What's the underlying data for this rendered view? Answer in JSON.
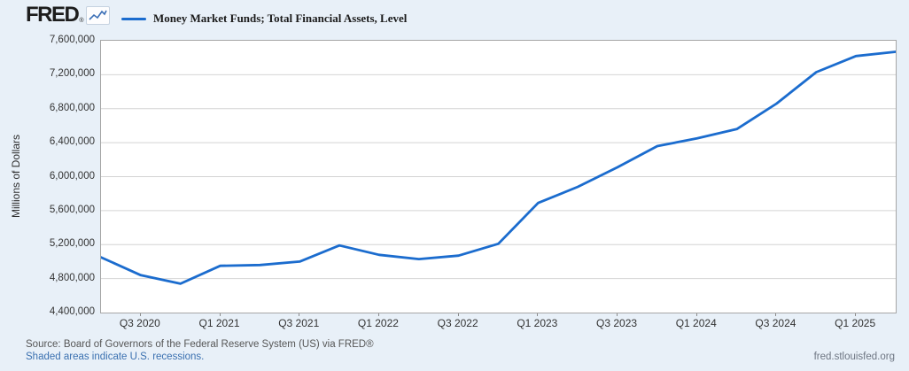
{
  "header": {
    "logo_text": "FRED",
    "registered_mark": "®",
    "legend_label": "Money Market Funds; Total Financial Assets, Level"
  },
  "chart_data": {
    "type": "line",
    "title": "Money Market Funds; Total Financial Assets, Level",
    "ylabel": "Millions of Dollars",
    "ylim": [
      4400000,
      7600000
    ],
    "ytick_interval": 400000,
    "ytick_labels": [
      "4,400,000",
      "4,800,000",
      "5,200,000",
      "5,600,000",
      "6,000,000",
      "6,400,000",
      "6,800,000",
      "7,200,000",
      "7,600,000"
    ],
    "x": [
      "Q2 2020",
      "Q3 2020",
      "Q4 2020",
      "Q1 2021",
      "Q2 2021",
      "Q3 2021",
      "Q4 2021",
      "Q1 2022",
      "Q2 2022",
      "Q3 2022",
      "Q4 2022",
      "Q1 2023",
      "Q2 2023",
      "Q3 2023",
      "Q4 2023",
      "Q1 2024",
      "Q2 2024",
      "Q3 2024",
      "Q4 2024",
      "Q1 2025",
      "Q2 2025"
    ],
    "values": [
      5050000,
      4840000,
      4740000,
      4950000,
      4960000,
      5000000,
      5190000,
      5080000,
      5030000,
      5070000,
      5210000,
      5690000,
      5880000,
      6110000,
      6360000,
      6450000,
      6560000,
      6860000,
      7230000,
      7420000,
      7470000
    ],
    "xtick_labels": [
      "Q3 2020",
      "Q1 2021",
      "Q3 2021",
      "Q1 2022",
      "Q3 2022",
      "Q1 2023",
      "Q3 2023",
      "Q1 2024",
      "Q3 2024",
      "Q1 2025"
    ],
    "line_color": "#1b6cce",
    "grid_color": "#d4d4d4",
    "grid": true,
    "legend_position": "top"
  },
  "footer": {
    "source_line": "Source: Board of Governors of the Federal Reserve System (US) via FRED®",
    "recessions_note": "Shaded areas indicate U.S. recessions.",
    "site_link": "fred.stlouisfed.org"
  }
}
